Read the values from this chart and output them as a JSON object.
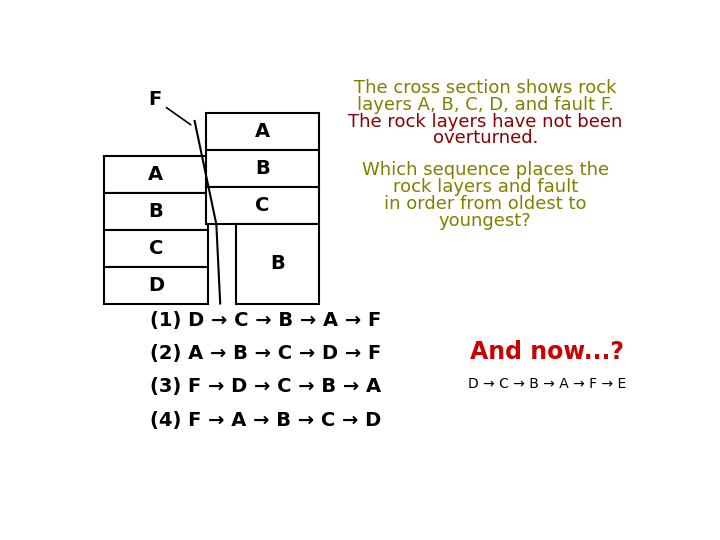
{
  "bg_color": "#ffffff",
  "title_line1": "The cross section shows rock",
  "title_line2": "layers A, B, C, D, and fault F.",
  "title_line3_red": "The rock layers have not been",
  "title_line4_red": "overturned.",
  "question_line1": "Which sequence places the",
  "question_line2": "rock layers and fault",
  "question_line3": "in order from oldest to",
  "question_line4": "youngest?",
  "options": [
    "(1) D → C → B → A → F",
    "(2) A → B → C → D → F",
    "(3) F → D → C → B → A",
    "(4) F → A → B → C → D"
  ],
  "and_now": "And now...?",
  "answer": "D → C → B → A → F → E",
  "olive_color": "#808000",
  "dark_red_color": "#8B0000",
  "red_color": "#cc0000",
  "black": "#000000",
  "left_block_layers": [
    "A",
    "B",
    "C",
    "D"
  ],
  "right_block_layers": [
    "A",
    "B",
    "C"
  ],
  "right_block_bottom_label": "B"
}
